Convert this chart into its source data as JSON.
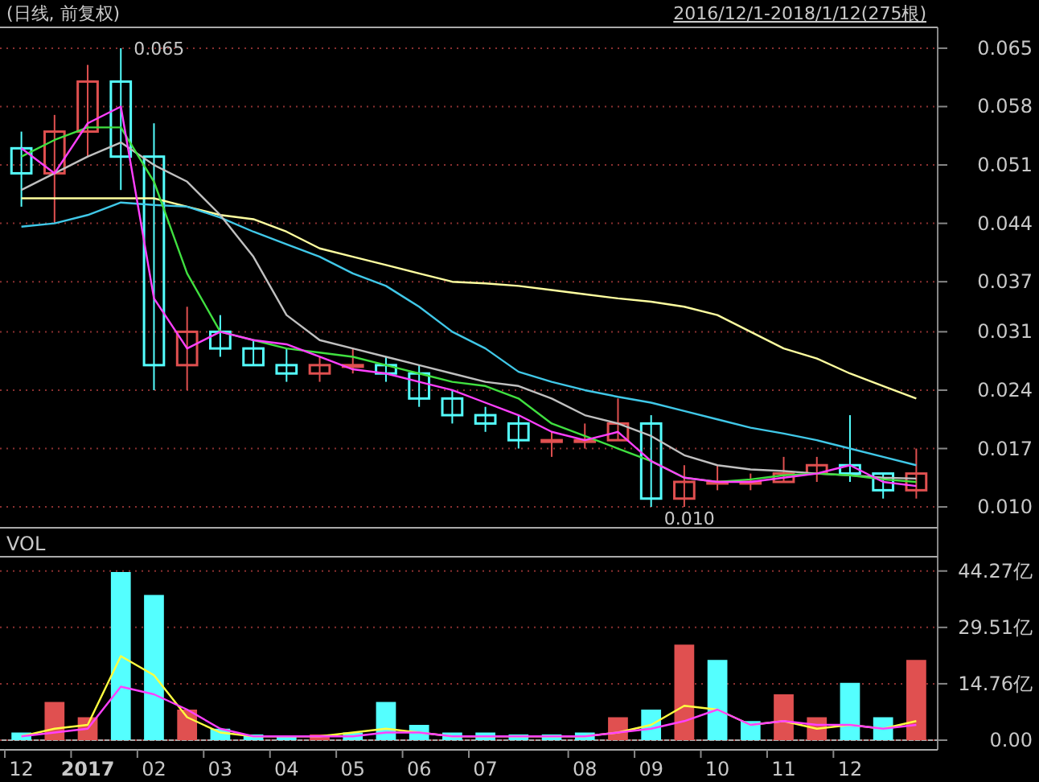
{
  "chart_data": [
    {
      "type": "candlestick",
      "title": "(日线, 前复权)",
      "subtitle": "2016/12/1-2018/1/12(275根)",
      "tick_labels": "y",
      "grid": "y",
      "marker": "none",
      "categories": [
        "12",
        null,
        "2017",
        null,
        "02",
        null,
        "03",
        null,
        "04",
        null,
        "05",
        null,
        "06",
        null,
        "07",
        null,
        null,
        "08",
        null,
        "09",
        null,
        "10",
        null,
        "11",
        null,
        "12",
        null,
        null
      ],
      "ylim": [
        0.0075,
        0.0675
      ],
      "yticks": [
        {
          "value": 0.01,
          "label": "0.010"
        },
        {
          "value": 0.017,
          "label": "0.017"
        },
        {
          "value": 0.024,
          "label": "0.024"
        },
        {
          "value": 0.031,
          "label": "0.031"
        },
        {
          "value": 0.037,
          "label": "0.037"
        },
        {
          "value": 0.044,
          "label": "0.044"
        },
        {
          "value": 0.051,
          "label": "0.051"
        },
        {
          "value": 0.058,
          "label": "0.058"
        },
        {
          "value": 0.065,
          "label": "0.065"
        }
      ],
      "ohlc": [
        [
          0.053,
          0.055,
          0.046,
          0.05
        ],
        [
          0.05,
          0.057,
          0.044,
          0.055
        ],
        [
          0.055,
          0.063,
          0.052,
          0.061
        ],
        [
          0.061,
          0.065,
          0.048,
          0.052
        ],
        [
          0.052,
          0.056,
          0.024,
          0.027
        ],
        [
          0.027,
          0.034,
          0.024,
          0.031
        ],
        [
          0.031,
          0.033,
          0.028,
          0.029
        ],
        [
          0.029,
          0.03,
          0.027,
          0.027
        ],
        [
          0.027,
          0.029,
          0.025,
          0.026
        ],
        [
          0.026,
          0.028,
          0.025,
          0.027
        ],
        [
          0.027,
          0.029,
          0.026,
          0.027
        ],
        [
          0.027,
          0.028,
          0.025,
          0.026
        ],
        [
          0.026,
          0.027,
          0.022,
          0.023
        ],
        [
          0.023,
          0.024,
          0.02,
          0.021
        ],
        [
          0.021,
          0.022,
          0.019,
          0.02
        ],
        [
          0.02,
          0.021,
          0.017,
          0.018
        ],
        [
          0.018,
          0.019,
          0.016,
          0.018
        ],
        [
          0.018,
          0.02,
          0.017,
          0.018
        ],
        [
          0.018,
          0.023,
          0.018,
          0.02
        ],
        [
          0.02,
          0.021,
          0.01,
          0.011
        ],
        [
          0.011,
          0.015,
          0.01,
          0.013
        ],
        [
          0.013,
          0.015,
          0.012,
          0.013
        ],
        [
          0.013,
          0.014,
          0.012,
          0.013
        ],
        [
          0.013,
          0.016,
          0.013,
          0.014
        ],
        [
          0.014,
          0.016,
          0.013,
          0.015
        ],
        [
          0.015,
          0.021,
          0.013,
          0.014
        ],
        [
          0.014,
          0.014,
          0.011,
          0.012
        ],
        [
          0.012,
          0.017,
          0.011,
          0.014
        ]
      ],
      "series": [
        {
          "type": "line",
          "color": "#ffffa0",
          "values": [
            0.047,
            0.047,
            0.047,
            0.047,
            0.047,
            0.046,
            0.045,
            0.0445,
            0.043,
            0.041,
            0.04,
            0.039,
            0.038,
            0.037,
            0.0368,
            0.0365,
            0.036,
            0.0355,
            0.035,
            0.0346,
            0.034,
            0.033,
            0.031,
            0.029,
            0.0278,
            0.026,
            0.0245,
            0.023
          ]
        },
        {
          "type": "line",
          "color": "#40c8e8",
          "values": [
            0.0436,
            0.044,
            0.045,
            0.0465,
            0.0462,
            0.046,
            0.0447,
            0.043,
            0.0415,
            0.04,
            0.038,
            0.0365,
            0.034,
            0.031,
            0.029,
            0.0262,
            0.025,
            0.024,
            0.0232,
            0.0225,
            0.0215,
            0.0205,
            0.0195,
            0.0188,
            0.018,
            0.017,
            0.016,
            0.015
          ]
        },
        {
          "type": "line",
          "color": "#c0c0c0",
          "values": [
            0.048,
            0.05,
            0.052,
            0.0537,
            0.051,
            0.049,
            0.045,
            0.04,
            0.033,
            0.03,
            0.029,
            0.028,
            0.027,
            0.026,
            0.025,
            0.0245,
            0.023,
            0.021,
            0.02,
            0.0185,
            0.0162,
            0.015,
            0.0145,
            0.0143,
            0.014,
            0.0138,
            0.0135,
            0.0134
          ]
        },
        {
          "type": "line",
          "color": "#40e040",
          "values": [
            0.052,
            0.054,
            0.0555,
            0.0555,
            0.049,
            0.038,
            0.031,
            0.03,
            0.029,
            0.0285,
            0.028,
            0.027,
            0.026,
            0.025,
            0.0245,
            0.023,
            0.02,
            0.0185,
            0.017,
            0.0155,
            0.0135,
            0.013,
            0.0133,
            0.0138,
            0.014,
            0.0138,
            0.0133,
            0.013
          ]
        },
        {
          "type": "line",
          "color": "#ff40ff",
          "values": [
            0.053,
            0.05,
            0.056,
            0.058,
            0.035,
            0.029,
            0.031,
            0.03,
            0.0295,
            0.028,
            0.0265,
            0.026,
            0.025,
            0.024,
            0.0225,
            0.021,
            0.019,
            0.018,
            0.019,
            0.0155,
            0.0135,
            0.013,
            0.013,
            0.0135,
            0.014,
            0.015,
            0.013,
            0.0125
          ]
        }
      ],
      "annotations": [
        "0.065",
        "0.010"
      ]
    },
    {
      "type": "bar",
      "title": "VOL",
      "grid": "y",
      "marker": "none",
      "categories": [
        "12",
        null,
        "2017",
        null,
        "02",
        null,
        "03",
        null,
        "04",
        null,
        "05",
        null,
        "06",
        null,
        "07",
        null,
        null,
        "08",
        null,
        "09",
        null,
        "10",
        null,
        "11",
        null,
        "12",
        null,
        null
      ],
      "ylim": [
        0,
        48
      ],
      "yticks": [
        {
          "value": 0,
          "label": "0.00"
        },
        {
          "value": 14.76,
          "label": "14.76亿"
        },
        {
          "value": 29.51,
          "label": "29.51亿"
        },
        {
          "value": 44.27,
          "label": "44.27亿"
        }
      ],
      "series": [
        {
          "type": "bar",
          "values": [
            2,
            10,
            6,
            44,
            38,
            8,
            3,
            1.5,
            1,
            1.5,
            2,
            10,
            4,
            2,
            2,
            1.5,
            1.5,
            2,
            6,
            8,
            25,
            21,
            5,
            12,
            6,
            15,
            6,
            21
          ],
          "colors": [
            "#54ffff",
            "#e05050",
            "#e05050",
            "#54ffff",
            "#54ffff",
            "#e05050",
            "#54ffff",
            "#54ffff",
            "#54ffff",
            "#e05050",
            "#54ffff",
            "#54ffff",
            "#54ffff",
            "#54ffff",
            "#54ffff",
            "#54ffff",
            "#54ffff",
            "#54ffff",
            "#e05050",
            "#54ffff",
            "#e05050",
            "#54ffff",
            "#54ffff",
            "#e05050",
            "#e05050",
            "#54ffff",
            "#54ffff",
            "#e05050"
          ]
        },
        {
          "type": "line",
          "color": "#ffff40",
          "values": [
            1,
            3,
            4,
            22,
            17,
            6,
            2,
            1,
            1,
            1,
            2,
            3,
            2,
            1,
            1,
            1,
            1,
            1,
            2,
            4,
            9,
            8,
            4,
            5,
            3,
            4,
            3,
            5
          ]
        },
        {
          "type": "line",
          "color": "#ff40ff",
          "values": [
            1,
            2,
            3,
            14,
            12,
            8,
            3,
            1,
            1,
            1,
            1,
            2,
            2,
            1,
            1,
            1,
            1,
            1,
            2,
            3,
            5,
            8,
            4,
            5,
            4,
            4,
            3,
            4
          ]
        }
      ]
    }
  ]
}
